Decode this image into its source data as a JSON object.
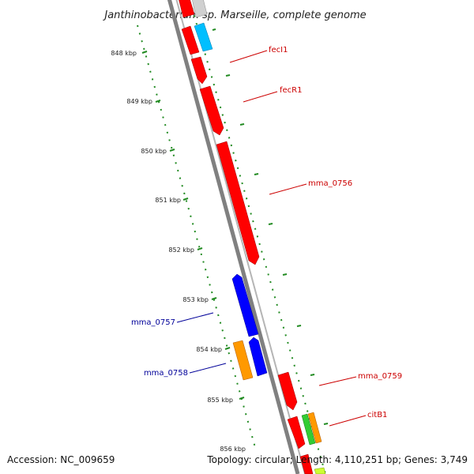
{
  "title": "Janthinobacterium sp. Marseille, complete genome",
  "footer": {
    "accession": "Accession: NC_009659",
    "stats": "Topology: circular; Length: 4,110,251 bp; Genes: 3,749"
  },
  "colors": {
    "backbone": "#808080",
    "tick": "#228b22",
    "label_forward": "#cc0000",
    "label_reverse": "#000099"
  },
  "ticks": [
    "848 kbp",
    "849 kbp",
    "850 kbp",
    "851 kbp",
    "852 kbp",
    "853 kbp",
    "854 kbp",
    "855 kbp",
    "856 kbp"
  ],
  "gene_labels": [
    "fecI1",
    "fecR1",
    "mma_0756",
    "mma_0757",
    "mma_0758",
    "mma_0759",
    "citB1"
  ]
}
